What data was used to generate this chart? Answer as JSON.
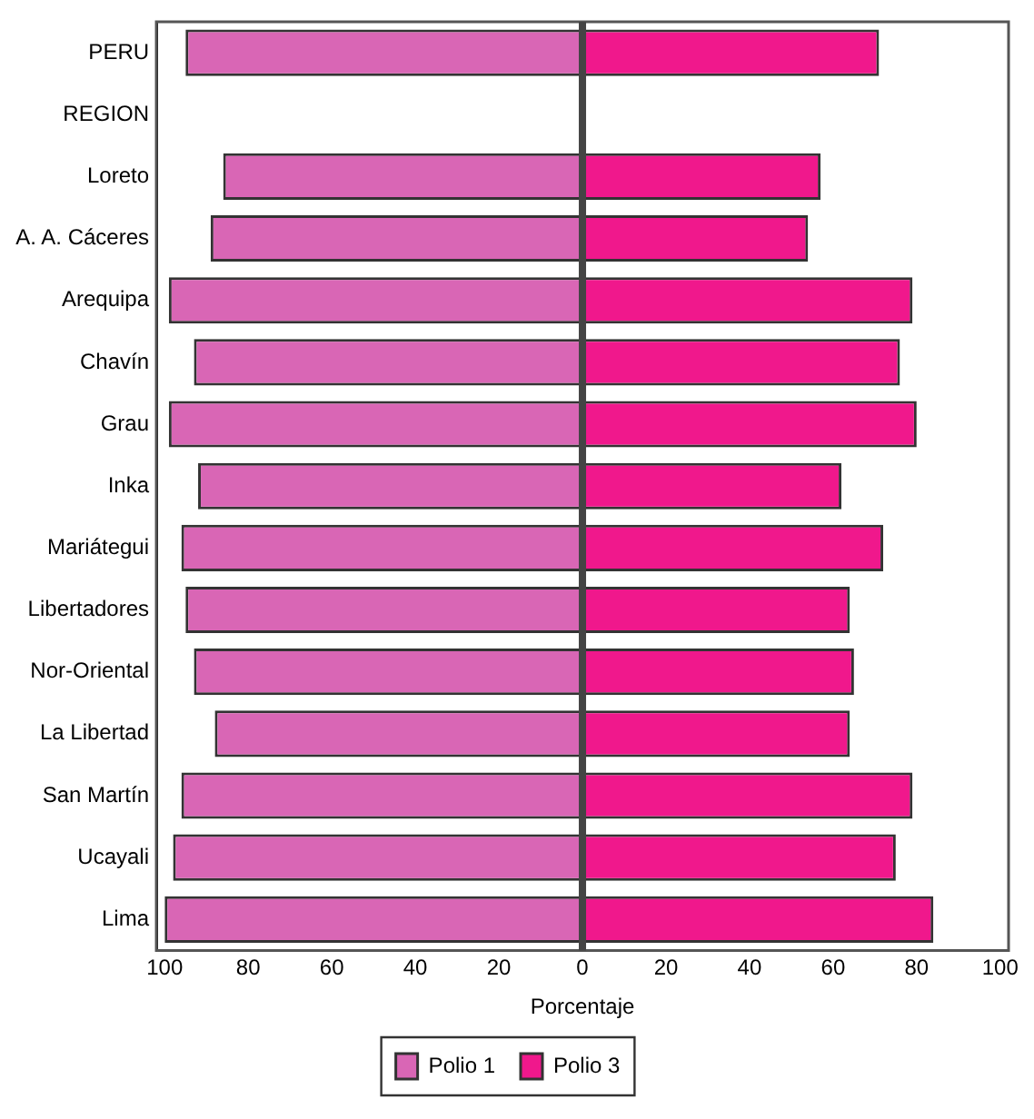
{
  "chart_data": {
    "type": "bar",
    "orientation": "horizontal",
    "xlabel": "Porcentaje",
    "categories": [
      "PERU",
      "REGION",
      "Loreto",
      "A. A. Cáceres",
      "Arequipa",
      "Chavín",
      "Grau",
      "Inka",
      "Mariátegui",
      "Libertadores",
      "Nor-Oriental",
      "La Libertad",
      "San Martín",
      "Ucayali",
      "Lima"
    ],
    "series": [
      {
        "name": "Polio 1",
        "color": "#d966b5",
        "values": [
          -95,
          null,
          -86,
          -89,
          -99,
          -93,
          -99,
          -92,
          -96,
          -95,
          -93,
          -88,
          -96,
          -98,
          -100
        ]
      },
      {
        "name": "Polio 3",
        "color": "#f0188c",
        "values": [
          71,
          null,
          57,
          54,
          79,
          76,
          80,
          62,
          72,
          64,
          65,
          64,
          79,
          75,
          84
        ]
      }
    ],
    "xlim": [
      -102,
      102
    ],
    "xticks": [
      {
        "value": -100,
        "label": "100"
      },
      {
        "value": -80,
        "label": "80"
      },
      {
        "value": -60,
        "label": "60"
      },
      {
        "value": -40,
        "label": "40"
      },
      {
        "value": -20,
        "label": "20"
      },
      0,
      20,
      40,
      60,
      80,
      100
    ],
    "ref_lines": [
      {
        "axis": "x",
        "value": 0,
        "color": "#444444"
      }
    ],
    "grid": false,
    "legend": "bottom",
    "stacked": true
  }
}
